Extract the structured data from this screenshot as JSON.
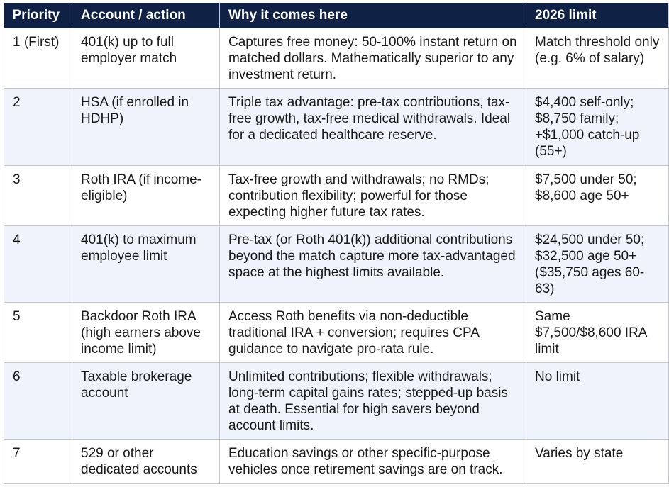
{
  "table": {
    "headers": [
      "Priority",
      "Account / action",
      "Why it comes here",
      "2026 limit"
    ],
    "rows": [
      {
        "priority": "1 (First)",
        "account": "401(k) up to full employer match",
        "why": "Captures free money: 50-100% instant return on matched dollars. Mathematically superior to any investment return.",
        "limit": "Match threshold only (e.g. 6% of salary)"
      },
      {
        "priority": "2",
        "account": "HSA (if enrolled in HDHP)",
        "why": "Triple tax advantage: pre-tax contributions, tax-free growth, tax-free medical withdrawals. Ideal for a dedicated healthcare reserve.",
        "limit": "$4,400 self-only; $8,750 family; +$1,000 catch-up (55+)"
      },
      {
        "priority": "3",
        "account": "Roth IRA (if income-eligible)",
        "why": "Tax-free growth and withdrawals; no RMDs; contribution flexibility; powerful for those expecting higher future tax rates.",
        "limit": "$7,500 under 50; $8,600 age 50+"
      },
      {
        "priority": "4",
        "account": "401(k) to maximum employee limit",
        "why": "Pre-tax (or Roth 401(k)) additional contributions beyond the match capture more tax-advantaged space at the highest limits available.",
        "limit": "$24,500 under 50; $32,500 age 50+ ($35,750 ages 60-63)"
      },
      {
        "priority": "5",
        "account": "Backdoor Roth IRA (high earners above income limit)",
        "why": "Access Roth benefits via non-deductible traditional IRA + conversion; requires CPA guidance to navigate pro-rata rule.",
        "limit": "Same $7,500/$8,600 IRA limit"
      },
      {
        "priority": "6",
        "account": "Taxable brokerage account",
        "why": "Unlimited contributions; flexible withdrawals; long-term capital gains rates; stepped-up basis at death. Essential for high savers beyond account limits.",
        "limit": "No limit"
      },
      {
        "priority": "7",
        "account": "529 or other dedicated accounts",
        "why": "Education savings or other specific-purpose vehicles once retirement savings are on track.",
        "limit": "Varies by state"
      }
    ]
  }
}
